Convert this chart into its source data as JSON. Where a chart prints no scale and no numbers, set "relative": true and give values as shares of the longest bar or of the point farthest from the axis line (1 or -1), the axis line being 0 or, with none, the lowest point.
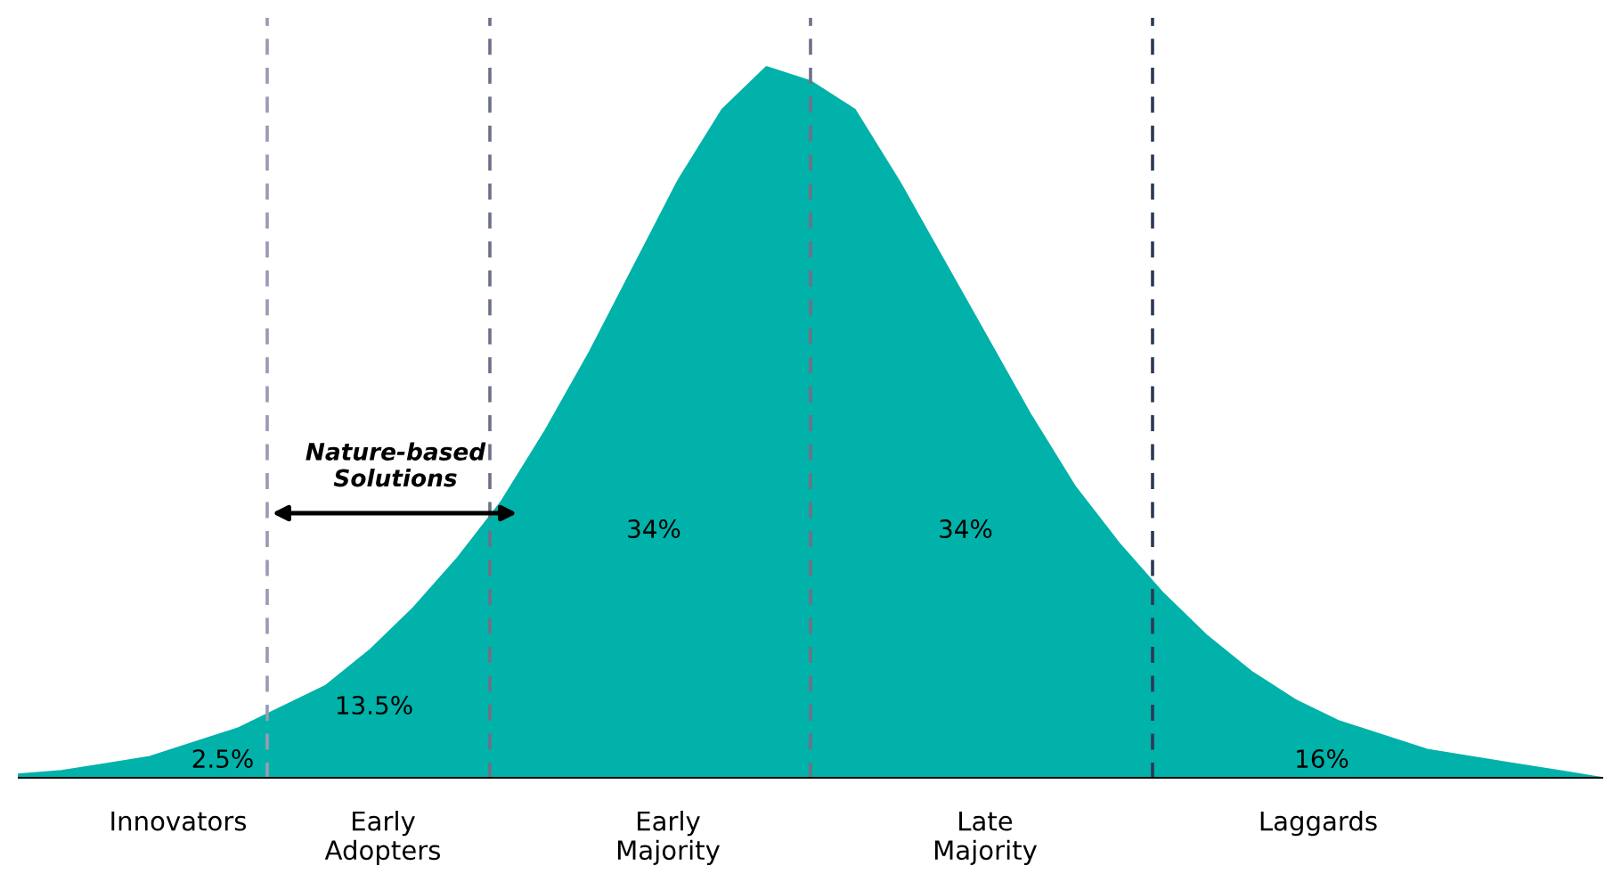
{
  "chart_data": {
    "type": "area",
    "relative": true,
    "categories": [
      null,
      null,
      null,
      null,
      null,
      null,
      null,
      null,
      null,
      null,
      null,
      null,
      null,
      null,
      null,
      null,
      null,
      null,
      null,
      null,
      null,
      null,
      null,
      null,
      null,
      null,
      null,
      null,
      null,
      null,
      null,
      null,
      null,
      null,
      null,
      null,
      null
    ],
    "series": [
      {
        "color": "#00b2a9",
        "values": [
          0.005,
          0.01,
          0.02,
          0.03,
          0.05,
          0.07,
          0.1,
          0.13,
          0.18,
          0.24,
          0.31,
          0.39,
          0.49,
          0.6,
          0.72,
          0.84,
          0.94,
          1.0,
          0.98,
          0.94,
          0.84,
          0.73,
          0.62,
          0.51,
          0.41,
          0.33,
          0.26,
          0.2,
          0.15,
          0.11,
          0.08,
          0.06,
          0.04,
          0.03,
          0.02,
          0.01,
          0.0
        ]
      }
    ],
    "annotations": [
      "2.5%",
      "13.5%",
      "34%",
      "34%",
      "16%",
      "Innovators",
      "Early\nAdopters",
      "Early\nMajority",
      "Late\nMajority",
      "Laggards",
      "Nature-based\nSolutions"
    ]
  }
}
